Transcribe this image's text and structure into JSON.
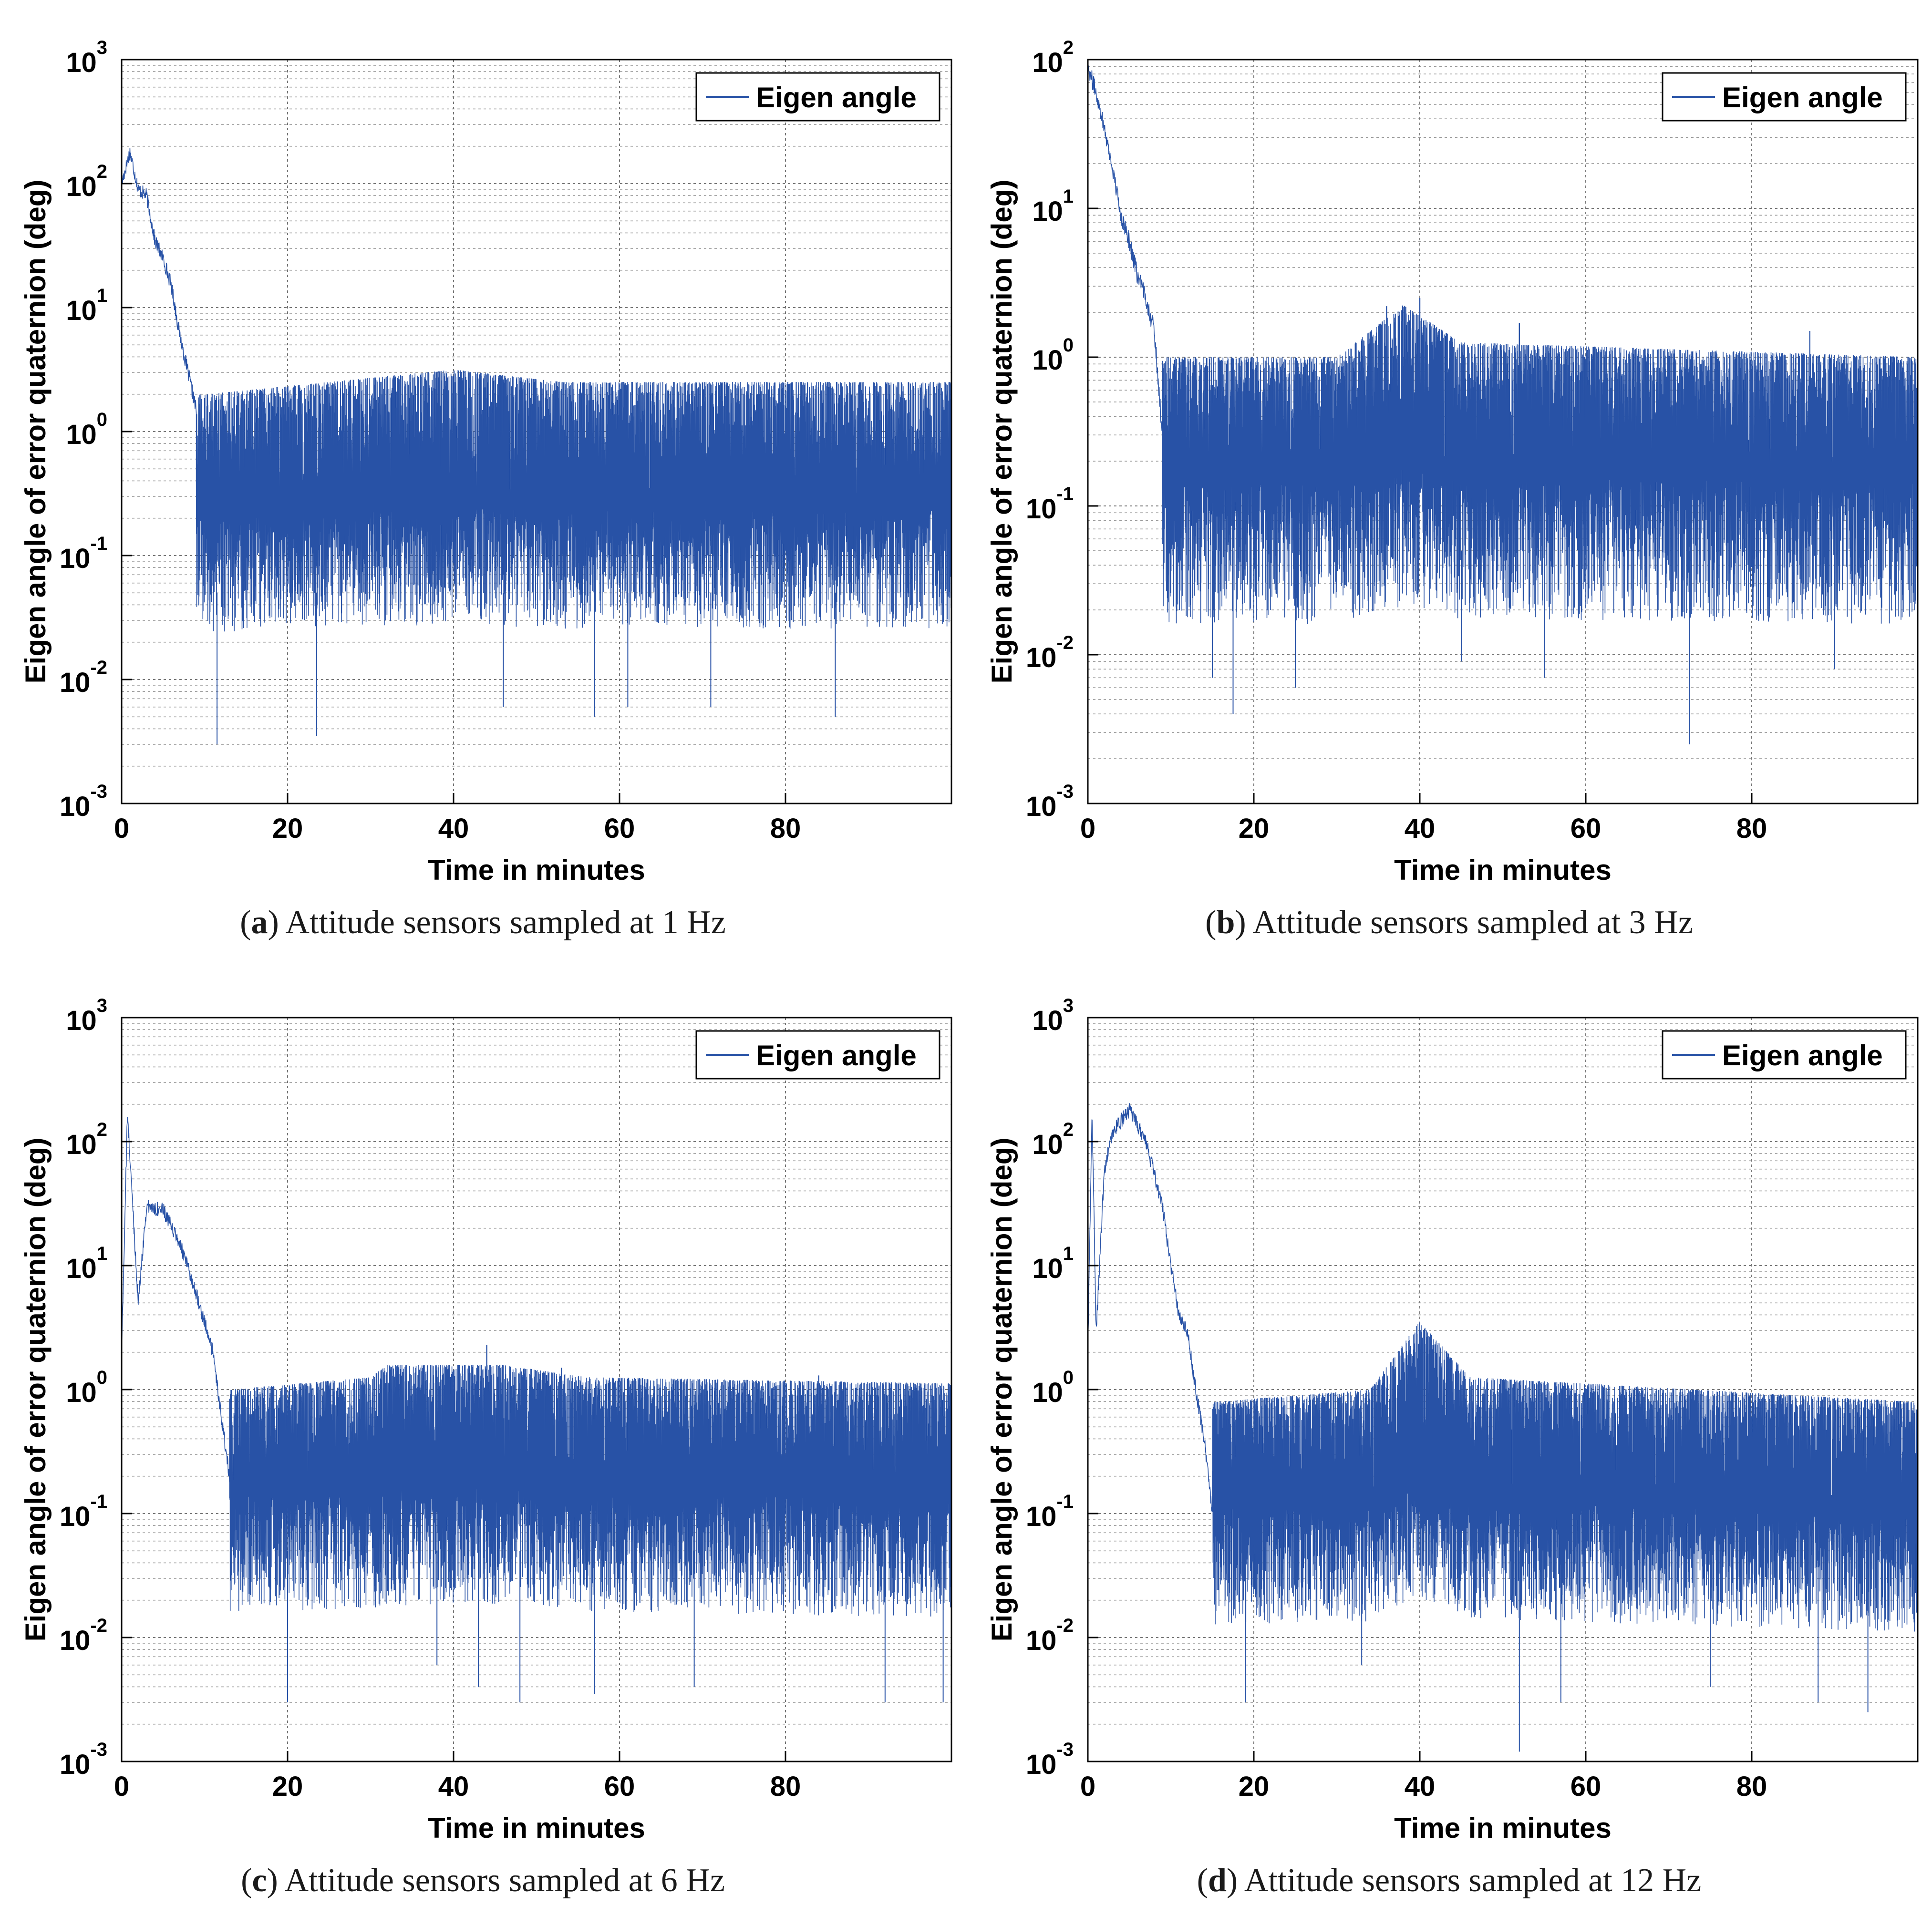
{
  "colors": {
    "series": "#2852a6",
    "grid": "#777777",
    "axis": "#000000",
    "text": "#000000"
  },
  "chart_data": [
    {
      "type": "line",
      "panel_label": "a",
      "caption": "Attitude sensors sampled at 1 Hz",
      "xlabel": "Time in minutes",
      "ylabel": "Eigen angle of error quaternion (deg)",
      "yscale": "log",
      "xlim": [
        0,
        100
      ],
      "ylim_exp": [
        -3,
        3
      ],
      "x_ticks": [
        "0",
        "20",
        "40",
        "60",
        "80"
      ],
      "y_tick_exponents": [
        "-3",
        "-2",
        "-1",
        "0",
        "1",
        "2",
        "3"
      ],
      "legend": "Eigen angle",
      "series": [
        {
          "name": "Eigen angle",
          "settle_minute": 9,
          "envelope": [
            [
              0,
              100
            ],
            [
              1,
              180
            ],
            [
              2,
              90
            ],
            [
              3,
              80
            ],
            [
              4,
              35
            ],
            [
              5,
              25
            ],
            [
              6,
              15
            ],
            [
              7,
              6
            ],
            [
              8,
              3
            ],
            [
              9,
              1.5
            ],
            [
              10,
              0.3
            ],
            [
              40,
              0.5
            ],
            [
              53,
              0.3
            ],
            [
              100,
              0.3
            ]
          ],
          "noise_peak_log": [
            [
              10,
              0.3
            ],
            [
              40,
              0.5
            ],
            [
              53,
              0.4
            ],
            [
              100,
              0.4
            ]
          ],
          "noise_floor_log": [
            [
              10,
              -1.2
            ],
            [
              100,
              -1.2
            ]
          ],
          "deep_dips": [
            [
              11.5,
              0.003
            ],
            [
              23.5,
              0.0035
            ],
            [
              46,
              0.006
            ],
            [
              57,
              0.005
            ],
            [
              61,
              0.006
            ],
            [
              71,
              0.006
            ],
            [
              86,
              0.005
            ]
          ],
          "spikes": [
            [
              40,
              2.8
            ],
            [
              53,
              2.2
            ],
            [
              88,
              1.8
            ],
            [
              99,
              1.5
            ]
          ]
        }
      ]
    },
    {
      "type": "line",
      "panel_label": "b",
      "caption": "Attitude sensors sampled at 3 Hz",
      "xlabel": "Time in minutes",
      "ylabel": "Eigen angle of error quaternion (deg)",
      "yscale": "log",
      "xlim": [
        0,
        100
      ],
      "ylim_exp": [
        -3,
        2
      ],
      "x_ticks": [
        "0",
        "20",
        "40",
        "60",
        "80"
      ],
      "y_tick_exponents": [
        "-3",
        "-2",
        "-1",
        "0",
        "1",
        "2"
      ],
      "legend": "Eigen angle",
      "series": [
        {
          "name": "Eigen angle",
          "settle_minute": 9,
          "envelope": [
            [
              0,
              90
            ],
            [
              1,
              60
            ],
            [
              2,
              35
            ],
            [
              3,
              18
            ],
            [
              4,
              9
            ],
            [
              5,
              6
            ],
            [
              6,
              3.5
            ],
            [
              7,
              2.5
            ],
            [
              8,
              1.5
            ],
            [
              9,
              0.3
            ],
            [
              35,
              0.4
            ],
            [
              40,
              1.0
            ],
            [
              45,
              0.4
            ],
            [
              100,
              0.3
            ]
          ],
          "noise_peak_log": [
            [
              9,
              0.0
            ],
            [
              30,
              0.0
            ],
            [
              38,
              0.35
            ],
            [
              45,
              0.1
            ],
            [
              100,
              0.0
            ]
          ],
          "noise_floor_log": [
            [
              9,
              -1.3
            ],
            [
              100,
              -1.3
            ]
          ],
          "deep_dips": [
            [
              15,
              0.007
            ],
            [
              17.5,
              0.004
            ],
            [
              25,
              0.006
            ],
            [
              45,
              0.009
            ],
            [
              55,
              0.007
            ],
            [
              72.5,
              0.0025
            ],
            [
              90,
              0.008
            ]
          ],
          "spikes": [
            [
              36,
              2.2
            ],
            [
              40,
              2.5
            ],
            [
              52,
              1.7
            ],
            [
              87,
              1.5
            ]
          ]
        }
      ]
    },
    {
      "type": "line",
      "panel_label": "c",
      "caption": "Attitude sensors sampled at 6 Hz",
      "xlabel": "Time in minutes",
      "ylabel": "Eigen angle of error quaternion (deg)",
      "yscale": "log",
      "xlim": [
        0,
        100
      ],
      "ylim_exp": [
        -3,
        3
      ],
      "x_ticks": [
        "0",
        "20",
        "40",
        "60",
        "80"
      ],
      "y_tick_exponents": [
        "-3",
        "-2",
        "-1",
        "0",
        "1",
        "2",
        "3"
      ],
      "legend": "Eigen angle",
      "series": [
        {
          "name": "Eigen angle",
          "settle_minute": 13,
          "envelope": [
            [
              0,
              2
            ],
            [
              0.7,
              170
            ],
            [
              2,
              5
            ],
            [
              3,
              30
            ],
            [
              5,
              28
            ],
            [
              7,
              15
            ],
            [
              9,
              6
            ],
            [
              11,
              2
            ],
            [
              12,
              0.6
            ],
            [
              13,
              0.2
            ],
            [
              30,
              0.3
            ],
            [
              45,
              0.4
            ],
            [
              100,
              0.2
            ]
          ],
          "noise_peak_log": [
            [
              13,
              0.0
            ],
            [
              30,
              0.1
            ],
            [
              32,
              0.2
            ],
            [
              46,
              0.2
            ],
            [
              56,
              0.1
            ],
            [
              100,
              0.05
            ]
          ],
          "noise_floor_log": [
            [
              13,
              -1.3
            ],
            [
              100,
              -1.4
            ]
          ],
          "deep_dips": [
            [
              20,
              0.003
            ],
            [
              38,
              0.006
            ],
            [
              43,
              0.004
            ],
            [
              48,
              0.003
            ],
            [
              57,
              0.0035
            ],
            [
              69,
              0.004
            ],
            [
              92,
              0.003
            ],
            [
              99,
              0.003
            ]
          ],
          "spikes": [
            [
              31,
              1.1
            ],
            [
              39,
              1.5
            ],
            [
              44,
              2.3
            ],
            [
              53,
              1.5
            ],
            [
              84,
              1.3
            ]
          ]
        }
      ]
    },
    {
      "type": "line",
      "panel_label": "d",
      "caption": "Attitude sensors sampled at 12 Hz",
      "xlabel": "Time in minutes",
      "ylabel": "Eigen angle of error quaternion (deg)",
      "yscale": "log",
      "xlim": [
        0,
        100
      ],
      "ylim_exp": [
        -3,
        3
      ],
      "x_ticks": [
        "0",
        "20",
        "40",
        "60",
        "80"
      ],
      "y_tick_exponents": [
        "-3",
        "-2",
        "-1",
        "0",
        "1",
        "2",
        "3"
      ],
      "legend": "Eigen angle",
      "series": [
        {
          "name": "Eigen angle",
          "settle_minute": 15,
          "envelope": [
            [
              0,
              2
            ],
            [
              0.5,
              180
            ],
            [
              1,
              3
            ],
            [
              2,
              60
            ],
            [
              3,
              120
            ],
            [
              5,
              180
            ],
            [
              7,
              100
            ],
            [
              9,
              30
            ],
            [
              10,
              10
            ],
            [
              11,
              4
            ],
            [
              12,
              3
            ],
            [
              13,
              1
            ],
            [
              14,
              0.4
            ],
            [
              15,
              0.1
            ],
            [
              40,
              0.3
            ],
            [
              45,
              0.15
            ],
            [
              100,
              0.12
            ]
          ],
          "noise_peak_log": [
            [
              15,
              -0.1
            ],
            [
              34,
              0.0
            ],
            [
              40,
              0.55
            ],
            [
              46,
              0.1
            ],
            [
              100,
              -0.1
            ]
          ],
          "noise_floor_log": [
            [
              15,
              -1.4
            ],
            [
              100,
              -1.5
            ]
          ],
          "deep_dips": [
            [
              19,
              0.003
            ],
            [
              33,
              0.006
            ],
            [
              52,
              0.0012
            ],
            [
              57,
              0.003
            ],
            [
              75,
              0.004
            ],
            [
              88,
              0.003
            ],
            [
              94,
              0.0025
            ]
          ],
          "spikes": [
            [
              40,
              1.5
            ],
            [
              42,
              1.3
            ],
            [
              98,
              0.7
            ]
          ]
        }
      ]
    }
  ]
}
